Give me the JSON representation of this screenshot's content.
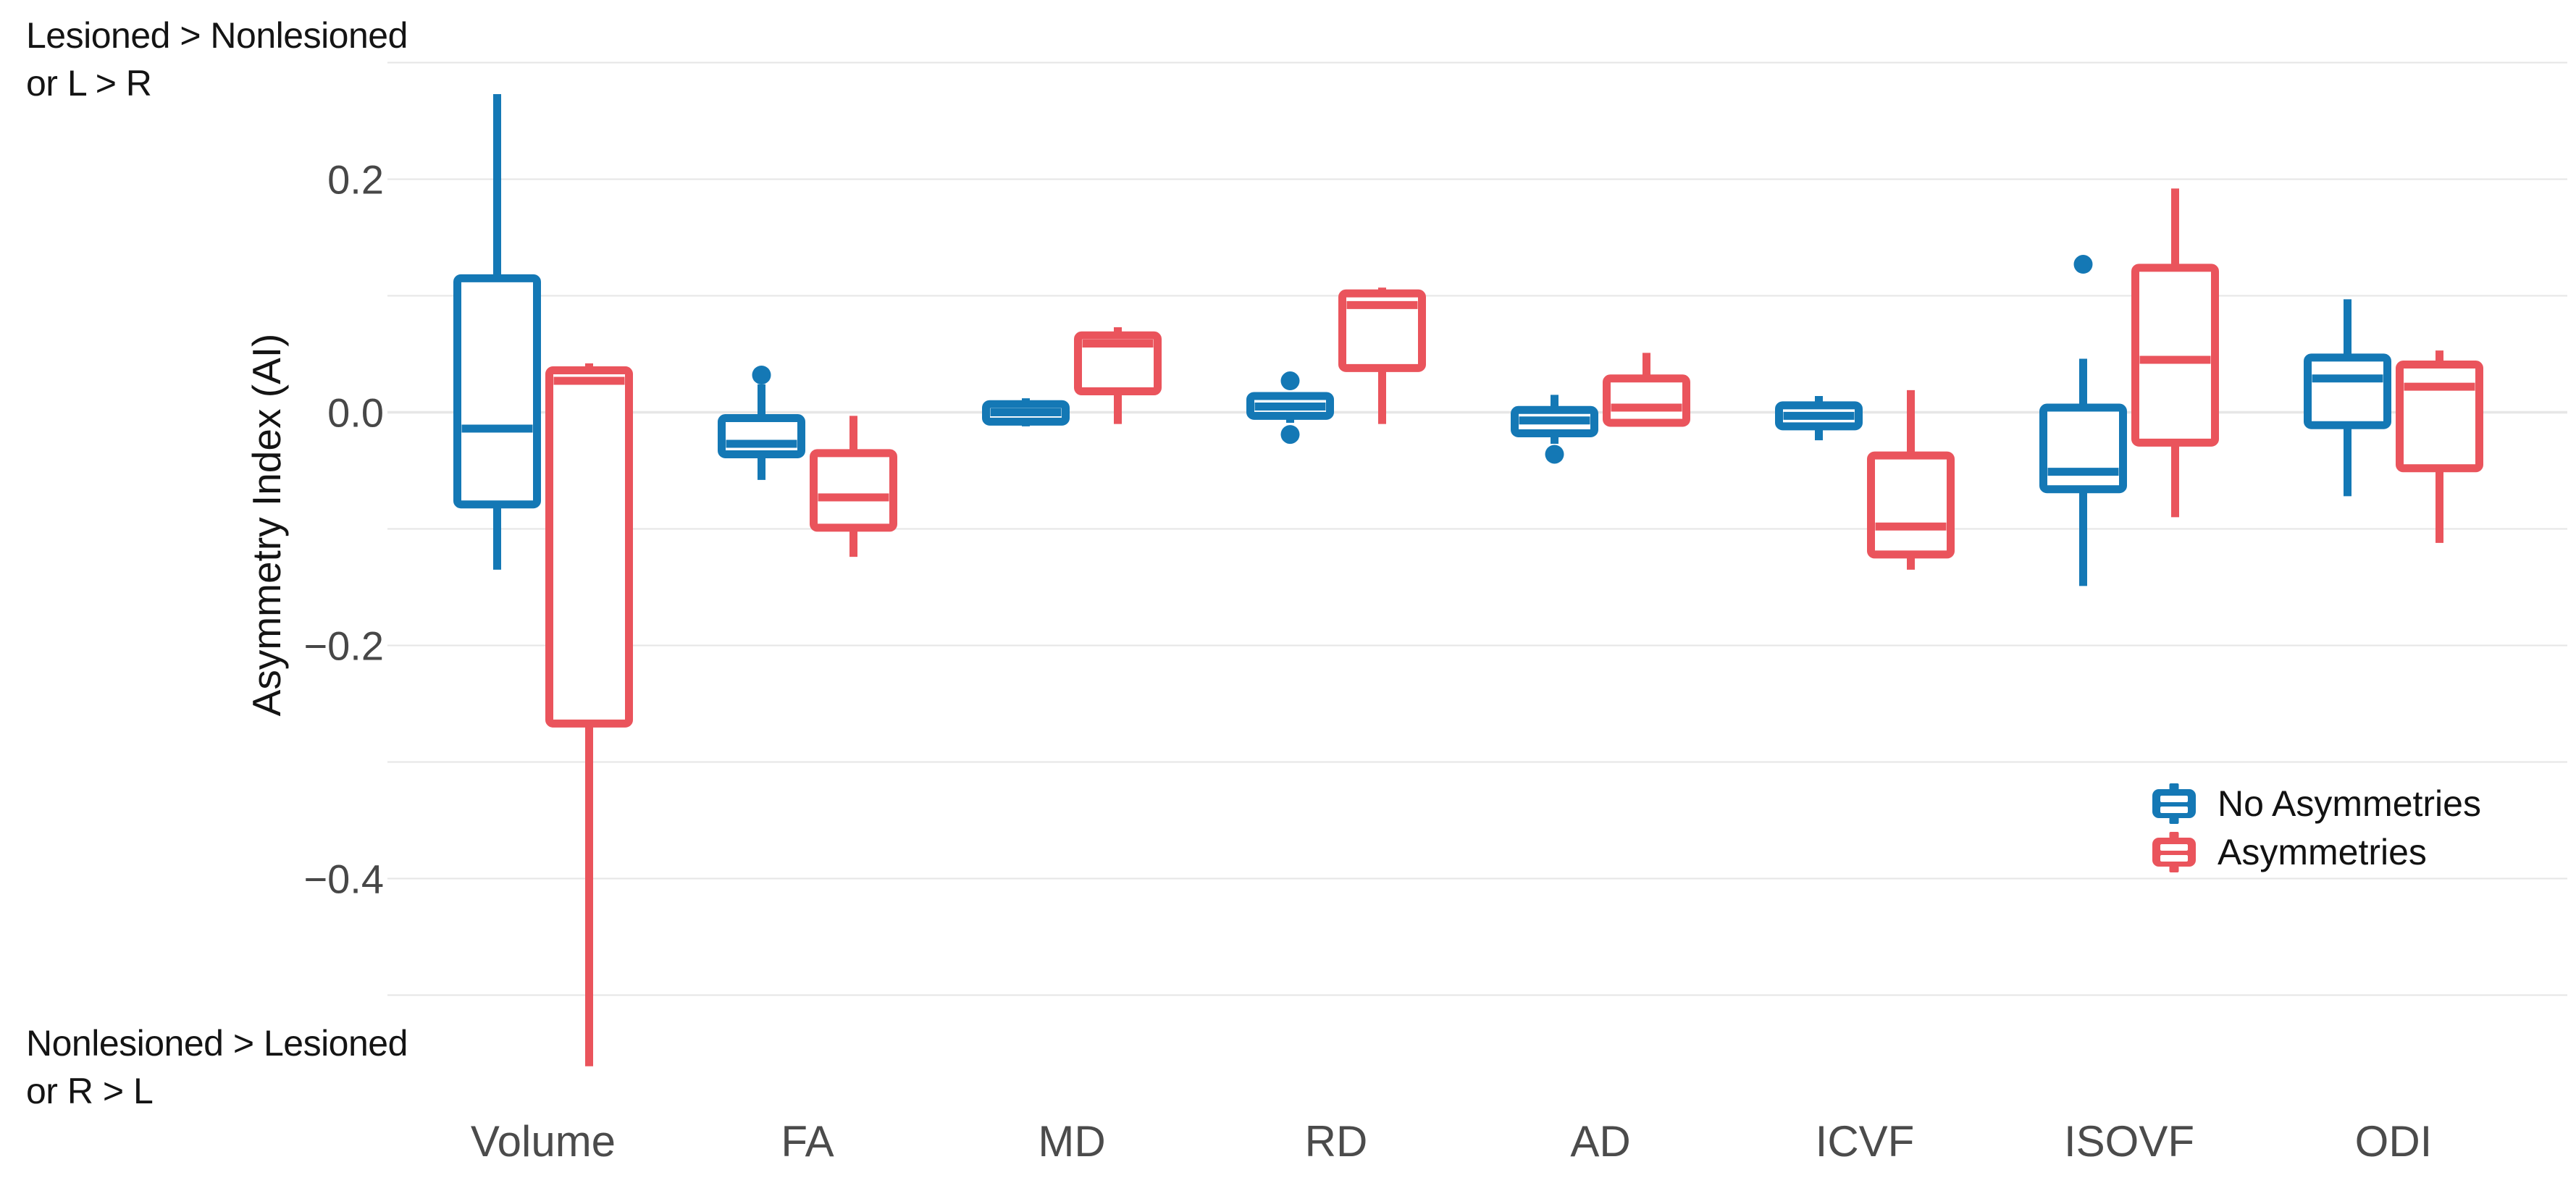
{
  "annotations": {
    "top_line1": "Lesioned > Nonlesioned",
    "top_line2": "or L > R",
    "bottom_line1": "Nonlesioned > Lesioned",
    "bottom_line2": "or R > L"
  },
  "y_axis": {
    "title": "Asymmetry Index (AI)",
    "tick_labels": [
      "0.2",
      "0.0",
      "−0.2",
      "−0.4"
    ],
    "tick_values": [
      0.2,
      0.0,
      -0.2,
      -0.4
    ]
  },
  "legend": {
    "items": [
      {
        "label": "No Asymmetries",
        "color": "#1478b5"
      },
      {
        "label": "Asymmetries",
        "color": "#ea545c"
      }
    ]
  },
  "chart_data": {
    "type": "boxplot",
    "title": "",
    "xlabel": "",
    "ylabel": "Asymmetry Index (AI)",
    "categories": [
      "Volume",
      "FA",
      "MD",
      "RD",
      "AD",
      "ICVF",
      "ISOVF",
      "ODI"
    ],
    "ylim": [
      -0.62,
      0.32
    ],
    "gridline_values": [
      0.3,
      0.2,
      0.1,
      0.0,
      -0.1,
      -0.2,
      -0.3,
      -0.4,
      -0.5
    ],
    "grid": "horizontal gridlines only, no axis spines, no tick marks",
    "legend_position": "inside lower right",
    "annotation_top": "Lesioned > Nonlesioned or L > R (high AI)",
    "annotation_bottom": "Nonlesioned > Lesioned or R > L (low AI)",
    "series": [
      {
        "name": "No Asymmetries",
        "color": "#1478b5",
        "boxes": [
          {
            "category": "Volume",
            "whislo": -0.135,
            "q1": -0.079,
            "med": -0.014,
            "q3": 0.115,
            "whishi": 0.273,
            "outliers": []
          },
          {
            "category": "FA",
            "whislo": -0.058,
            "q1": -0.036,
            "med": -0.027,
            "q3": -0.005,
            "whishi": 0.024,
            "outliers": [
              0.032
            ]
          },
          {
            "category": "MD",
            "whislo": -0.012,
            "q1": -0.008,
            "med": 0.0,
            "q3": 0.007,
            "whishi": 0.012,
            "outliers": []
          },
          {
            "category": "RD",
            "whislo": -0.009,
            "q1": -0.003,
            "med": 0.005,
            "q3": 0.014,
            "whishi": 0.016,
            "outliers": [
              0.027,
              -0.019
            ]
          },
          {
            "category": "AD",
            "whislo": -0.027,
            "q1": -0.018,
            "med": -0.007,
            "q3": 0.002,
            "whishi": 0.015,
            "outliers": [
              -0.036
            ]
          },
          {
            "category": "ICVF",
            "whislo": -0.024,
            "q1": -0.012,
            "med": -0.003,
            "q3": 0.006,
            "whishi": 0.014,
            "outliers": []
          },
          {
            "category": "ISOVF",
            "whislo": -0.149,
            "q1": -0.066,
            "med": -0.051,
            "q3": 0.004,
            "whishi": 0.046,
            "outliers": [
              0.127
            ]
          },
          {
            "category": "ODI",
            "whislo": -0.072,
            "q1": -0.011,
            "med": 0.029,
            "q3": 0.047,
            "whishi": 0.097,
            "outliers": []
          }
        ]
      },
      {
        "name": "Asymmetries",
        "color": "#ea545c",
        "boxes": [
          {
            "category": "Volume",
            "whislo": -0.561,
            "q1": -0.267,
            "med": 0.027,
            "q3": 0.036,
            "whishi": 0.042,
            "outliers": []
          },
          {
            "category": "FA",
            "whislo": -0.124,
            "q1": -0.099,
            "med": -0.073,
            "q3": -0.035,
            "whishi": -0.003,
            "outliers": []
          },
          {
            "category": "MD",
            "whislo": -0.01,
            "q1": 0.018,
            "med": 0.059,
            "q3": 0.066,
            "whishi": 0.073,
            "outliers": []
          },
          {
            "category": "RD",
            "whislo": -0.01,
            "q1": 0.038,
            "med": 0.092,
            "q3": 0.102,
            "whishi": 0.107,
            "outliers": []
          },
          {
            "category": "AD",
            "whislo": -0.01,
            "q1": -0.009,
            "med": 0.004,
            "q3": 0.029,
            "whishi": 0.051,
            "outliers": []
          },
          {
            "category": "ICVF",
            "whislo": -0.135,
            "q1": -0.122,
            "med": -0.098,
            "q3": -0.037,
            "whishi": 0.019,
            "outliers": []
          },
          {
            "category": "ISOVF",
            "whislo": -0.09,
            "q1": -0.026,
            "med": 0.045,
            "q3": 0.124,
            "whishi": 0.192,
            "outliers": []
          },
          {
            "category": "ODI",
            "whislo": -0.112,
            "q1": -0.048,
            "med": 0.022,
            "q3": 0.041,
            "whishi": 0.053,
            "outliers": []
          }
        ]
      }
    ]
  }
}
